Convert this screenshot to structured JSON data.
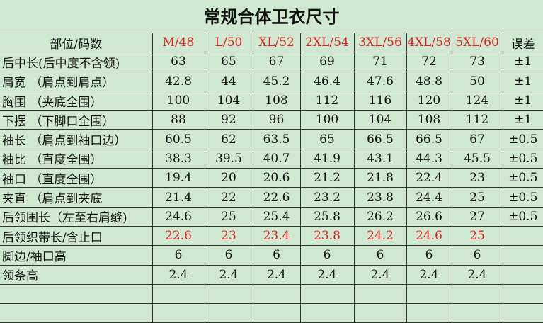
{
  "title": "常规合体卫衣尺寸",
  "colors": {
    "background": "#cfe9d0",
    "size_header": "#e02020",
    "highlight_row": "#e02020"
  },
  "header": {
    "label": "部位/码数",
    "sizes": [
      "M/48",
      "L/50",
      "XL/52",
      "2XL/54",
      "3XL/56",
      "4XL/58",
      "5XL/60"
    ],
    "tolerance": "误差"
  },
  "rows": [
    {
      "label": "后中长(后中度不含领)",
      "values": [
        "63",
        "65",
        "67",
        "69",
        "71",
        "72",
        "73"
      ],
      "tolerance": "±1",
      "red": false
    },
    {
      "label": "肩宽  （肩点到肩点）",
      "values": [
        "42.8",
        "44",
        "45.2",
        "46.4",
        "47.6",
        "48.8",
        "50"
      ],
      "tolerance": "±1",
      "red": false
    },
    {
      "label": "胸围   （夹底全围）",
      "values": [
        "100",
        "104",
        "108",
        "112",
        "116",
        "120",
        "124"
      ],
      "tolerance": "±1",
      "red": false
    },
    {
      "label": "下摆   （下脚口全围）",
      "values": [
        "88",
        "92",
        "96",
        "100",
        "104",
        "108",
        "112"
      ],
      "tolerance": "±1",
      "red": false
    },
    {
      "label": "袖长   （肩点到袖口边）",
      "values": [
        "60.5",
        "62",
        "63.5",
        "65",
        "66.5",
        "66.5",
        "67"
      ],
      "tolerance": "±0.5",
      "red": false
    },
    {
      "label": "袖比   （直度全围）",
      "values": [
        "38.3",
        "39.5",
        "40.7",
        "41.9",
        "43.1",
        "44.3",
        "45.5"
      ],
      "tolerance": "±0.5",
      "red": false
    },
    {
      "label": "袖口   （直度全围）",
      "values": [
        "19.4",
        "20",
        "20.6",
        "21.2",
        "21.8",
        "22.4",
        "23"
      ],
      "tolerance": "±0.5",
      "red": false
    },
    {
      "label": "夹直  （肩点到夹底",
      "values": [
        "21.4",
        "22",
        "22.6",
        "23.2",
        "23.8",
        "24.4",
        "25"
      ],
      "tolerance": "±0.5",
      "red": false
    },
    {
      "label": "后领围长（左至右肩缝)",
      "values": [
        "24.6",
        "25",
        "25.4",
        "25.8",
        "26.2",
        "26.6",
        "27"
      ],
      "tolerance": "±0.5",
      "red": false
    },
    {
      "label": "后领织带长/含止口",
      "values": [
        "22.6",
        "23",
        "23.4",
        "23.8",
        "24.2",
        "24.6",
        "25"
      ],
      "tolerance": "",
      "red": true
    },
    {
      "label": "脚边/袖口高",
      "values": [
        "6",
        "6",
        "6",
        "6",
        "6",
        "6",
        "6"
      ],
      "tolerance": "",
      "red": false
    },
    {
      "label": "领条高",
      "values": [
        "2.4",
        "2.4",
        "2.4",
        "2.4",
        "2.4",
        "2.4",
        "2.4"
      ],
      "tolerance": "",
      "red": false
    },
    {
      "label": "",
      "values": [
        "",
        "",
        "",
        "",
        "",
        "",
        ""
      ],
      "tolerance": "",
      "red": false
    },
    {
      "label": "",
      "values": [
        "",
        "",
        "",
        "",
        "",
        "",
        ""
      ],
      "tolerance": "",
      "red": false
    }
  ]
}
